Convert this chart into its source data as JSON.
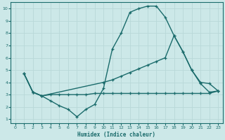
{
  "xlabel": "Humidex (Indice chaleur)",
  "xlim": [
    -0.5,
    23.5
  ],
  "ylim": [
    0.7,
    10.5
  ],
  "xticks": [
    0,
    1,
    2,
    3,
    4,
    5,
    6,
    7,
    8,
    9,
    10,
    11,
    12,
    13,
    14,
    15,
    16,
    17,
    18,
    19,
    20,
    21,
    22,
    23
  ],
  "yticks": [
    1,
    2,
    3,
    4,
    5,
    6,
    7,
    8,
    9,
    10
  ],
  "background_color": "#cce8e8",
  "grid_color": "#b0d4d4",
  "line_color": "#1a6b6b",
  "line1_x": [
    1,
    2,
    3,
    4,
    5,
    6,
    7,
    8,
    9,
    10,
    11,
    12,
    13,
    14,
    15,
    16,
    17,
    18,
    19,
    20,
    21,
    22,
    23
  ],
  "line1_y": [
    4.7,
    3.2,
    2.9,
    2.5,
    2.1,
    1.8,
    1.2,
    1.8,
    2.2,
    3.5,
    6.7,
    8.0,
    9.7,
    10.0,
    10.2,
    10.2,
    9.3,
    7.8,
    6.5,
    5.0,
    3.9,
    3.2,
    3.3
  ],
  "line2_x": [
    1,
    2,
    3,
    10,
    11,
    12,
    13,
    14,
    15,
    16,
    17,
    18,
    19,
    20,
    21,
    22,
    23
  ],
  "line2_y": [
    4.7,
    3.2,
    2.9,
    4.0,
    4.2,
    4.5,
    4.8,
    5.1,
    5.4,
    5.7,
    6.0,
    7.8,
    6.5,
    5.0,
    4.0,
    3.9,
    3.3
  ],
  "line3_x": [
    1,
    2,
    3,
    4,
    5,
    6,
    7,
    8,
    9,
    10,
    11,
    12,
    13,
    14,
    15,
    16,
    17,
    18,
    19,
    20,
    21,
    22,
    23
  ],
  "line3_y": [
    4.7,
    3.2,
    2.9,
    3.0,
    3.0,
    3.0,
    3.0,
    3.0,
    3.1,
    3.1,
    3.1,
    3.1,
    3.1,
    3.1,
    3.1,
    3.1,
    3.1,
    3.1,
    3.1,
    3.1,
    3.1,
    3.1,
    3.3
  ]
}
